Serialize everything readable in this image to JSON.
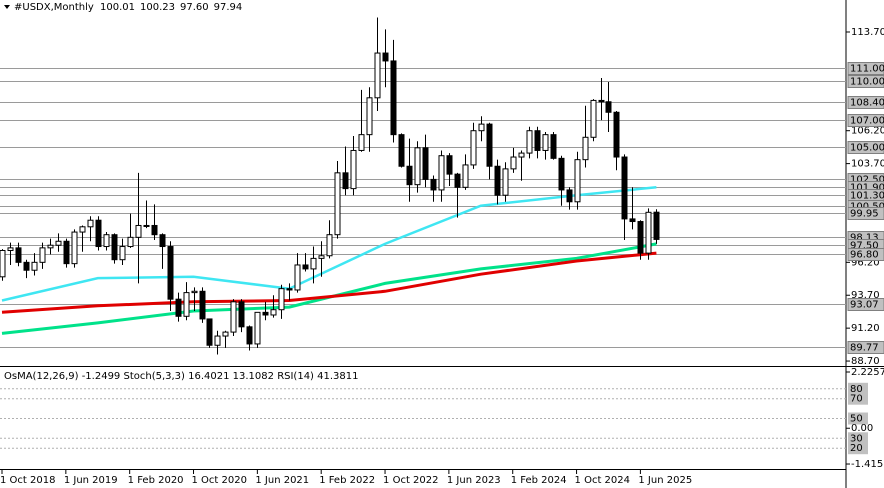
{
  "chart_data": [
    {
      "type": "candlestick",
      "title": "#USDX,Monthly",
      "last_labels": [
        "100.01",
        "100.23",
        "97.60",
        "97.94"
      ],
      "x": [
        "2018-10-01",
        "2018-11-01",
        "2018-12-01",
        "2019-01-01",
        "2019-02-01",
        "2019-03-01",
        "2019-04-01",
        "2019-05-01",
        "2019-06-01",
        "2019-07-01",
        "2019-08-01",
        "2019-09-01",
        "2019-10-01",
        "2019-11-01",
        "2019-12-01",
        "2020-01-01",
        "2020-02-01",
        "2020-03-01",
        "2020-04-01",
        "2020-05-01",
        "2020-06-01",
        "2020-07-01",
        "2020-08-01",
        "2020-09-01",
        "2020-10-01",
        "2020-11-01",
        "2020-12-01",
        "2021-01-01",
        "2021-02-01",
        "2021-03-01",
        "2021-04-01",
        "2021-05-01",
        "2021-06-01",
        "2021-07-01",
        "2021-08-01",
        "2021-09-01",
        "2021-10-01",
        "2021-11-01",
        "2021-12-01",
        "2022-01-01",
        "2022-02-01",
        "2022-03-01",
        "2022-04-01",
        "2022-05-01",
        "2022-06-01",
        "2022-07-01",
        "2022-08-01",
        "2022-09-01",
        "2022-10-01",
        "2022-11-01",
        "2022-12-01",
        "2023-01-01",
        "2023-02-01",
        "2023-03-01",
        "2023-04-01",
        "2023-05-01",
        "2023-06-01",
        "2023-07-01",
        "2023-08-01",
        "2023-09-01",
        "2023-10-01",
        "2023-11-01",
        "2023-12-01",
        "2024-01-01",
        "2024-02-01",
        "2024-03-01",
        "2024-04-01",
        "2024-05-01",
        "2024-06-01",
        "2024-07-01",
        "2024-08-01",
        "2024-09-01",
        "2024-10-01",
        "2024-11-01",
        "2024-12-01",
        "2025-01-01",
        "2025-02-01",
        "2025-03-01",
        "2025-04-01",
        "2025-05-01",
        "2025-06-01",
        "2025-07-01",
        "2025-08-01"
      ],
      "ohlc": [
        [
          95.1,
          97.2,
          94.8,
          97.1
        ],
        [
          97.1,
          97.7,
          96.0,
          97.3
        ],
        [
          97.3,
          97.7,
          95.9,
          96.2
        ],
        [
          96.2,
          96.4,
          95.0,
          95.6
        ],
        [
          95.6,
          96.9,
          95.2,
          96.2
        ],
        [
          96.2,
          97.7,
          95.7,
          97.3
        ],
        [
          97.3,
          98.0,
          96.8,
          97.5
        ],
        [
          97.5,
          98.4,
          97.0,
          97.8
        ],
        [
          97.8,
          98.0,
          95.8,
          96.1
        ],
        [
          96.1,
          98.7,
          95.8,
          98.5
        ],
        [
          98.5,
          99.0,
          97.0,
          98.9
        ],
        [
          98.9,
          99.7,
          97.8,
          99.4
        ],
        [
          99.4,
          99.7,
          97.1,
          97.4
        ],
        [
          97.4,
          98.5,
          97.1,
          98.3
        ],
        [
          98.3,
          98.4,
          96.1,
          96.4
        ],
        [
          96.4,
          98.0,
          96.0,
          97.4
        ],
        [
          97.4,
          99.9,
          97.3,
          98.1
        ],
        [
          98.1,
          103.0,
          94.6,
          99.0
        ],
        [
          99.0,
          100.9,
          98.8,
          99.0
        ],
        [
          99.0,
          100.6,
          97.9,
          98.3
        ],
        [
          98.3,
          98.4,
          95.7,
          97.4
        ],
        [
          97.4,
          97.8,
          92.5,
          93.4
        ],
        [
          93.4,
          93.9,
          91.7,
          92.1
        ],
        [
          92.1,
          94.7,
          91.8,
          93.9
        ],
        [
          93.9,
          94.3,
          92.5,
          94.0
        ],
        [
          94.0,
          94.3,
          91.6,
          91.9
        ],
        [
          91.9,
          91.9,
          89.7,
          89.9
        ],
        [
          89.9,
          91.0,
          89.2,
          90.6
        ],
        [
          90.6,
          91.0,
          89.7,
          90.9
        ],
        [
          90.9,
          93.4,
          90.6,
          93.2
        ],
        [
          93.2,
          93.4,
          90.9,
          91.3
        ],
        [
          91.3,
          91.4,
          89.5,
          90.0
        ],
        [
          90.0,
          92.4,
          89.7,
          92.4
        ],
        [
          92.4,
          93.2,
          91.8,
          92.2
        ],
        [
          92.2,
          93.7,
          92.0,
          92.6
        ],
        [
          92.6,
          94.5,
          91.9,
          94.2
        ],
        [
          94.2,
          94.6,
          93.3,
          94.1
        ],
        [
          94.1,
          96.9,
          93.9,
          96.0
        ],
        [
          96.0,
          96.9,
          95.5,
          95.7
        ],
        [
          95.7,
          97.4,
          94.6,
          96.5
        ],
        [
          96.5,
          97.8,
          95.1,
          96.7
        ],
        [
          96.7,
          99.4,
          96.5,
          98.3
        ],
        [
          98.3,
          103.9,
          98.0,
          103.0
        ],
        [
          103.0,
          105.0,
          101.3,
          101.8
        ],
        [
          101.8,
          105.8,
          101.3,
          104.7
        ],
        [
          104.7,
          109.3,
          104.6,
          105.9
        ],
        [
          105.9,
          109.5,
          104.6,
          108.7
        ],
        [
          108.7,
          114.8,
          107.7,
          112.1
        ],
        [
          112.1,
          113.9,
          109.5,
          111.5
        ],
        [
          111.5,
          113.1,
          105.3,
          105.9
        ],
        [
          105.9,
          106.0,
          103.4,
          103.5
        ],
        [
          103.5,
          105.6,
          100.8,
          102.1
        ],
        [
          102.1,
          105.4,
          101.5,
          104.9
        ],
        [
          104.9,
          105.9,
          101.9,
          102.5
        ],
        [
          102.5,
          102.8,
          100.8,
          101.7
        ],
        [
          101.7,
          104.7,
          100.8,
          104.3
        ],
        [
          104.3,
          104.5,
          102.0,
          102.9
        ],
        [
          102.9,
          103.0,
          99.6,
          101.9
        ],
        [
          101.9,
          104.4,
          101.7,
          103.6
        ],
        [
          103.6,
          106.8,
          103.3,
          106.2
        ],
        [
          106.2,
          107.3,
          105.4,
          106.7
        ],
        [
          106.7,
          106.8,
          102.5,
          103.5
        ],
        [
          103.5,
          104.0,
          100.6,
          101.3
        ],
        [
          101.3,
          103.8,
          100.8,
          103.3
        ],
        [
          103.3,
          104.9,
          103.0,
          104.2
        ],
        [
          104.2,
          104.7,
          102.4,
          104.5
        ],
        [
          104.5,
          106.5,
          104.1,
          106.2
        ],
        [
          106.2,
          106.5,
          104.1,
          104.7
        ],
        [
          104.7,
          106.1,
          104.0,
          105.9
        ],
        [
          105.9,
          106.1,
          104.0,
          104.1
        ],
        [
          104.1,
          104.3,
          100.5,
          101.7
        ],
        [
          101.7,
          101.9,
          100.2,
          100.8
        ],
        [
          100.8,
          104.6,
          100.2,
          104.0
        ],
        [
          104.0,
          108.1,
          103.4,
          105.7
        ],
        [
          105.7,
          108.6,
          105.4,
          108.5
        ],
        [
          108.5,
          110.2,
          107.0,
          108.4
        ],
        [
          108.4,
          109.9,
          106.1,
          107.6
        ],
        [
          107.6,
          107.7,
          103.2,
          104.2
        ],
        [
          104.2,
          104.4,
          97.9,
          99.5
        ],
        [
          99.5,
          101.9,
          98.7,
          99.3
        ],
        [
          99.3,
          99.4,
          96.4,
          96.9
        ],
        [
          96.9,
          100.3,
          96.4,
          100.0
        ],
        [
          100.01,
          100.23,
          97.6,
          97.94
        ]
      ],
      "up_color": "#ffffff",
      "down_color": "#000000",
      "ylim": [
        88.4,
        116.13
      ],
      "yticks": [
        {
          "value": 113.7,
          "label": "113.70"
        },
        {
          "value": 106.2,
          "label": "106.20"
        },
        {
          "value": 103.7,
          "label": "103.70"
        },
        {
          "value": 96.2,
          "label": "96.20"
        },
        {
          "value": 93.7,
          "label": "93.70"
        },
        {
          "value": 91.2,
          "label": "91.20"
        },
        {
          "value": 88.7,
          "label": "88.70"
        }
      ],
      "levels": [
        {
          "value": 111,
          "label": "111.00"
        },
        {
          "value": 110,
          "label": "110.00"
        },
        {
          "value": 108.4,
          "label": "108.40"
        },
        {
          "value": 107,
          "label": "107.00"
        },
        {
          "value": 105,
          "label": "105.00"
        },
        {
          "value": 102.5,
          "label": "102.50"
        },
        {
          "value": 101.9,
          "label": "101.90"
        },
        {
          "value": 101.3,
          "label": "101.30"
        },
        {
          "value": 100.5,
          "label": "100.50"
        },
        99.95,
        98.13,
        {
          "value": 97.5,
          "label": "97.50"
        },
        {
          "value": 96.8,
          "label": "96.80"
        },
        93.07,
        89.77
      ],
      "overlays": [
        {
          "color": "#3fe6f2",
          "x": [
            "2018-10-01",
            "2019-10-01",
            "2020-10-01",
            "2021-10-01",
            "2022-10-01",
            "2023-10-01",
            "2024-10-01",
            "2025-08-01"
          ],
          "values": [
            93.3,
            95.0,
            95.1,
            94.2,
            97.6,
            100.5,
            101.3,
            101.9
          ]
        },
        {
          "color": "#00e28a",
          "x": [
            "2018-10-01",
            "2019-10-01",
            "2020-10-01",
            "2021-10-01",
            "2022-10-01",
            "2023-10-01",
            "2024-10-01",
            "2025-08-01"
          ],
          "values": [
            90.8,
            91.6,
            92.5,
            92.8,
            94.6,
            95.7,
            96.5,
            97.6
          ]
        },
        {
          "color": "#e00000",
          "x": [
            "2018-10-01",
            "2019-10-01",
            "2020-10-01",
            "2021-10-01",
            "2022-10-01",
            "2023-10-01",
            "2024-10-01",
            "2025-08-01"
          ],
          "values": [
            92.4,
            92.9,
            93.2,
            93.3,
            94.0,
            95.3,
            96.3,
            96.9
          ]
        }
      ],
      "xticks": [
        {
          "value": "2018-10-01",
          "label": "1 Oct 2018"
        },
        {
          "value": "2019-06-01",
          "label": "1 Jun 2019"
        },
        {
          "value": "2020-02-01",
          "label": "1 Feb 2020"
        },
        {
          "value": "2020-10-01",
          "label": "1 Oct 2020"
        },
        {
          "value": "2021-06-01",
          "label": "1 Jun 2021"
        },
        {
          "value": "2022-02-01",
          "label": "1 Feb 2022"
        },
        {
          "value": "2022-10-01",
          "label": "1 Oct 2022"
        },
        {
          "value": "2023-06-01",
          "label": "1 Jun 2023"
        },
        {
          "value": "2024-02-01",
          "label": "1 Feb 2024"
        },
        {
          "value": "2024-10-01",
          "label": "1 Oct 2024"
        },
        {
          "value": "2025-06-01",
          "label": "1 Jun 2025"
        }
      ]
    },
    {
      "type": "oscillator",
      "title": "OsMA(12,26,9) -1.2499  Stoch(5,3,3) 16.4021 13.1082  RSI(14) 41.3811",
      "ylim": [
        0,
        100
      ],
      "yticks": [
        80,
        70,
        50,
        30,
        20
      ],
      "y2lim": [
        -1.573,
        2.344
      ],
      "y2ticks": [
        2.2257,
        {
          "value": 0,
          "label": "0.00"
        },
        -1.4155
      ]
    }
  ]
}
